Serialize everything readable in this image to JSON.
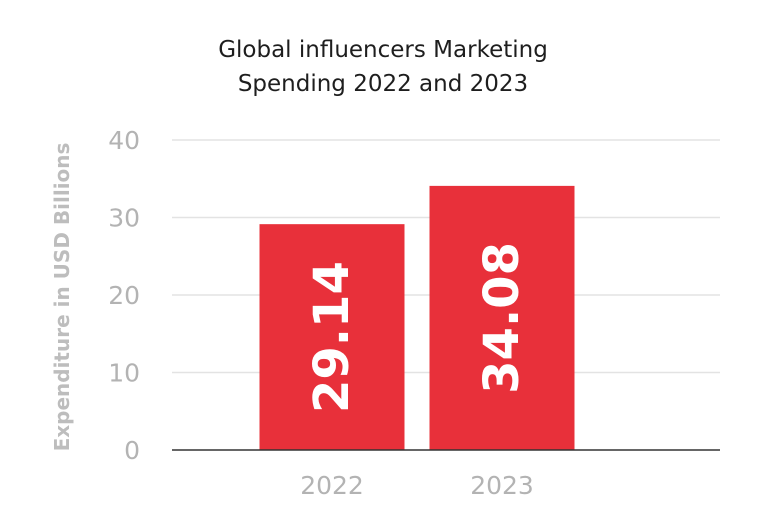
{
  "chart_data": {
    "type": "bar",
    "title_lines": [
      "Global influencers Marketing",
      "Spending 2022 and 2023"
    ],
    "xlabel": "",
    "ylabel": "Expenditure in USD Billions",
    "categories": [
      "2022",
      "2023"
    ],
    "values": [
      29.14,
      34.08
    ],
    "value_labels": [
      "29.14",
      "34.08"
    ],
    "ylim": [
      0,
      40
    ],
    "yticks": [
      0,
      10,
      20,
      30,
      40
    ],
    "grid": true,
    "legend": "none",
    "colors": {
      "bar": "#e8303a",
      "grid": "#e3e3e3",
      "axis": "#333333",
      "tick_text": "#b3b3b3"
    }
  }
}
